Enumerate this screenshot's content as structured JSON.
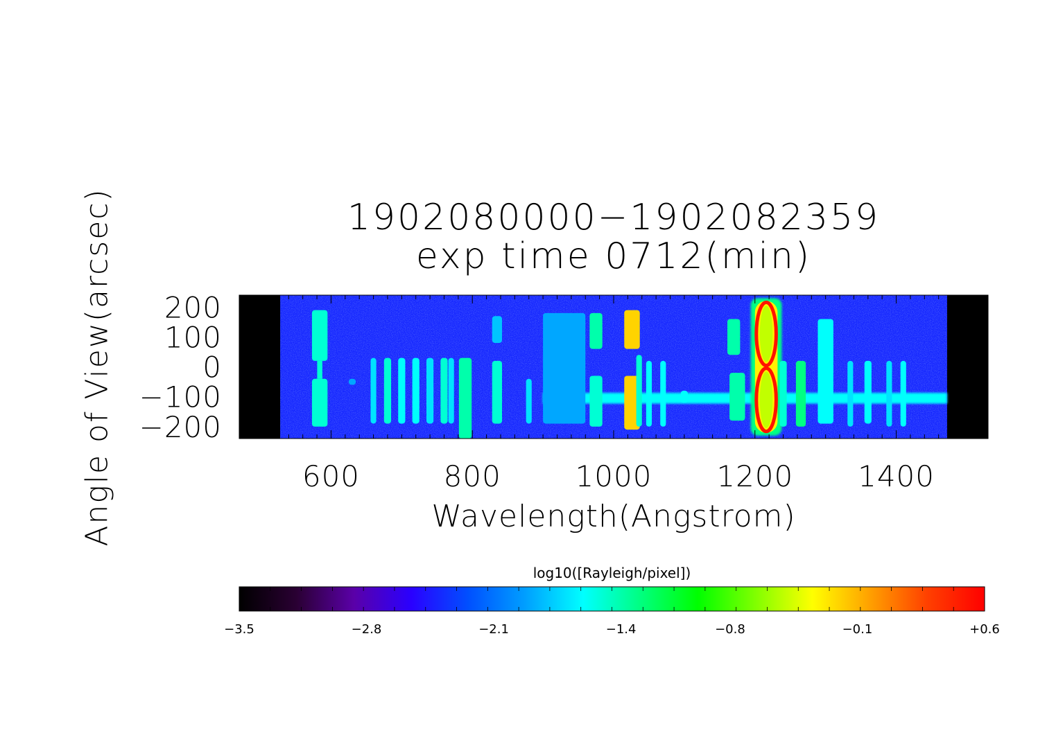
{
  "chart_data": {
    "type": "heatmap",
    "title": "1902080000−1902082359",
    "subtitle": "exp time 0712(min)",
    "xlabel": "Wavelength(Angstrom)",
    "ylabel": "Angle of View(arcsec)",
    "xlim": [
      470,
      1530
    ],
    "ylim": [
      -240,
      240
    ],
    "x_ticks": [
      600,
      800,
      1000,
      1200,
      1400
    ],
    "x_tick_labels": [
      "600",
      "800",
      "1000",
      "1200",
      "1400"
    ],
    "y_ticks": [
      200,
      100,
      0,
      -100,
      -200
    ],
    "y_tick_labels": [
      "200",
      "100",
      "0",
      "−100",
      "−200"
    ],
    "data_range_x": [
      528,
      1472
    ],
    "background_level": -2.4,
    "emission_lines": [
      {
        "x": 584,
        "level": -1.5,
        "width": 22,
        "y_extent": [
          -200,
          190
        ],
        "gap": [
          -40,
          20
        ]
      },
      {
        "x": 630,
        "level": -1.9,
        "width": 10,
        "y_extent": [
          -60,
          -40
        ]
      },
      {
        "x": 660,
        "level": -1.7,
        "width": 8,
        "y_extent": [
          -190,
          30
        ]
      },
      {
        "x": 680,
        "level": -1.5,
        "width": 10,
        "y_extent": [
          -190,
          30
        ]
      },
      {
        "x": 700,
        "level": -1.6,
        "width": 10,
        "y_extent": [
          -190,
          30
        ]
      },
      {
        "x": 720,
        "level": -1.6,
        "width": 10,
        "y_extent": [
          -190,
          30
        ]
      },
      {
        "x": 740,
        "level": -1.7,
        "width": 10,
        "y_extent": [
          -190,
          30
        ]
      },
      {
        "x": 760,
        "level": -1.5,
        "width": 10,
        "y_extent": [
          -190,
          30
        ]
      },
      {
        "x": 770,
        "level": -1.7,
        "width": 8,
        "y_extent": [
          -190,
          30
        ]
      },
      {
        "x": 790,
        "level": -1.4,
        "width": 18,
        "y_extent": [
          -240,
          30
        ]
      },
      {
        "x": 835,
        "level": -1.8,
        "width": 14,
        "y_extent": [
          80,
          170
        ]
      },
      {
        "x": 835,
        "level": -1.5,
        "width": 14,
        "y_extent": [
          -190,
          20
        ]
      },
      {
        "x": 880,
        "level": -1.7,
        "width": 8,
        "y_extent": [
          -190,
          -40
        ]
      },
      {
        "x": 930,
        "level": -1.9,
        "width": 60,
        "y_extent": [
          -190,
          180
        ]
      },
      {
        "x": 975,
        "level": -1.4,
        "width": 18,
        "y_extent": [
          60,
          180
        ]
      },
      {
        "x": 975,
        "level": -1.5,
        "width": 18,
        "y_extent": [
          -200,
          -30
        ]
      },
      {
        "x": 1026,
        "level": -0.2,
        "width": 22,
        "y_extent": [
          60,
          190
        ]
      },
      {
        "x": 1026,
        "level": -0.2,
        "width": 22,
        "y_extent": [
          -210,
          -30
        ]
      },
      {
        "x": 1036,
        "level": -1.5,
        "width": 8,
        "y_extent": [
          -200,
          40
        ]
      },
      {
        "x": 1050,
        "level": -1.6,
        "width": 8,
        "y_extent": [
          -200,
          20
        ]
      },
      {
        "x": 1070,
        "level": -1.6,
        "width": 8,
        "y_extent": [
          -200,
          20
        ]
      },
      {
        "x": 1100,
        "level": -1.6,
        "width": 10,
        "y_extent": [
          -120,
          -80
        ]
      },
      {
        "x": 1170,
        "level": -1.4,
        "width": 18,
        "y_extent": [
          40,
          160
        ]
      },
      {
        "x": 1175,
        "level": -1.4,
        "width": 22,
        "y_extent": [
          -180,
          -20
        ]
      },
      {
        "x": 1216,
        "level": 0.6,
        "width": 32,
        "y_extent": [
          -230,
          230
        ],
        "shape": "ring"
      },
      {
        "x": 1240,
        "level": -1.5,
        "width": 10,
        "y_extent": [
          -200,
          20
        ]
      },
      {
        "x": 1265,
        "level": -1.3,
        "width": 14,
        "y_extent": [
          -200,
          20
        ]
      },
      {
        "x": 1300,
        "level": -1.6,
        "width": 22,
        "y_extent": [
          -190,
          160
        ]
      },
      {
        "x": 1335,
        "level": -1.7,
        "width": 8,
        "y_extent": [
          -200,
          20
        ]
      },
      {
        "x": 1360,
        "level": -1.6,
        "width": 10,
        "y_extent": [
          -190,
          20
        ]
      },
      {
        "x": 1390,
        "level": -1.7,
        "width": 8,
        "y_extent": [
          -200,
          20
        ]
      },
      {
        "x": 1410,
        "level": -1.6,
        "width": 8,
        "y_extent": [
          -200,
          20
        ]
      }
    ],
    "continuum_band": {
      "y_center": -105,
      "y_halfwidth": 18,
      "x_range": [
        900,
        1472
      ],
      "level": -1.6
    },
    "colorbar": {
      "label": "log10([Rayleigh/pixel])",
      "min": -3.5,
      "max": 0.6,
      "tick_labels": [
        "−3.5",
        "−2.8",
        "−2.1",
        "−1.4",
        "−0.8",
        "−0.1",
        "+0.6"
      ],
      "tick_values": [
        -3.5,
        -2.8,
        -2.1,
        -1.4,
        -0.8,
        -0.1,
        0.6
      ],
      "colormap": [
        "#000000",
        "#2a0033",
        "#5a00a8",
        "#2a00ff",
        "#0050ff",
        "#00a0ff",
        "#00ffff",
        "#00ff80",
        "#00ff00",
        "#80ff00",
        "#ffff00",
        "#ffa000",
        "#ff4000",
        "#ff0000"
      ]
    }
  }
}
